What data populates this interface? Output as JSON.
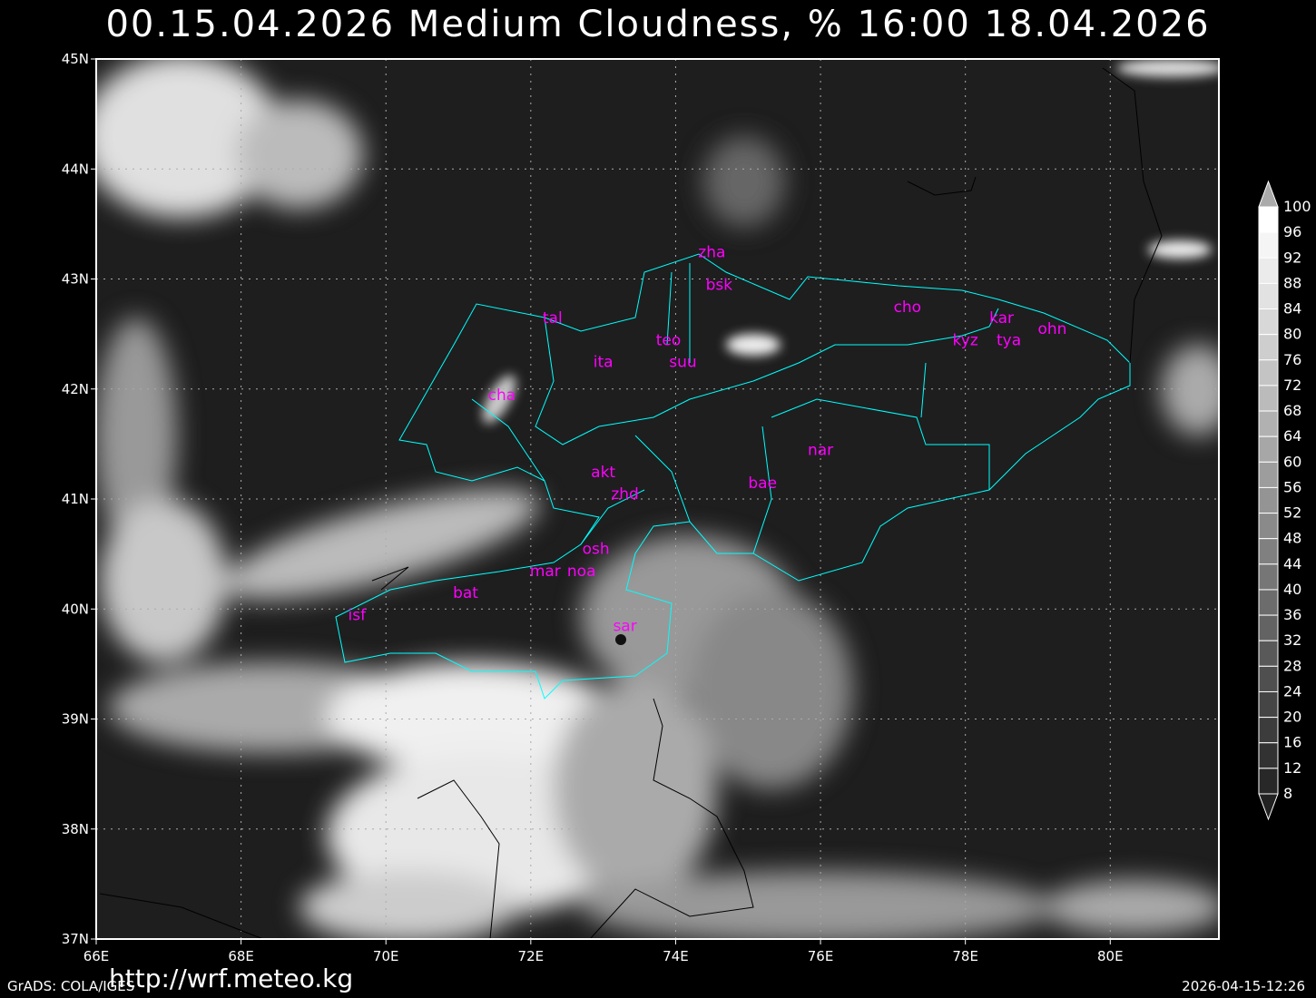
{
  "title": "00.15.04.2026  Medium Cloudness, %  16:00  18.04.2026",
  "map": {
    "lon_range": [
      66,
      81.5
    ],
    "lat_range": [
      37,
      45
    ],
    "background_color": "#1e1e1e",
    "border_color": "#00ffff",
    "station_color": "#ff00ff",
    "grid": true,
    "lon_ticks": [
      "66E",
      "68E",
      "70E",
      "72E",
      "74E",
      "76E",
      "78E",
      "80E"
    ],
    "lat_ticks": [
      "37N",
      "38N",
      "39N",
      "40N",
      "41N",
      "42N",
      "43N",
      "44N",
      "45N"
    ],
    "stations": [
      {
        "name": "zha",
        "lon": 74.5,
        "lat": 43.2
      },
      {
        "name": "bsk",
        "lon": 74.6,
        "lat": 42.9
      },
      {
        "name": "tal",
        "lon": 72.3,
        "lat": 42.6
      },
      {
        "name": "cho",
        "lon": 77.2,
        "lat": 42.7
      },
      {
        "name": "kar",
        "lon": 78.5,
        "lat": 42.6
      },
      {
        "name": "ohn",
        "lon": 79.2,
        "lat": 42.5
      },
      {
        "name": "kyz",
        "lon": 78.0,
        "lat": 42.4
      },
      {
        "name": "tya",
        "lon": 78.6,
        "lat": 42.4
      },
      {
        "name": "teo",
        "lon": 73.9,
        "lat": 42.4
      },
      {
        "name": "ita",
        "lon": 73.0,
        "lat": 42.2
      },
      {
        "name": "suu",
        "lon": 74.1,
        "lat": 42.2
      },
      {
        "name": "cha",
        "lon": 71.6,
        "lat": 41.9
      },
      {
        "name": "nar",
        "lon": 76.0,
        "lat": 41.4
      },
      {
        "name": "akt",
        "lon": 73.0,
        "lat": 41.2
      },
      {
        "name": "bae",
        "lon": 75.2,
        "lat": 41.1
      },
      {
        "name": "zhd",
        "lon": 73.3,
        "lat": 41.0
      },
      {
        "name": "osh",
        "lon": 72.9,
        "lat": 40.5
      },
      {
        "name": "mar",
        "lon": 72.2,
        "lat": 40.3
      },
      {
        "name": "noa",
        "lon": 72.7,
        "lat": 40.3
      },
      {
        "name": "bat",
        "lon": 71.1,
        "lat": 40.1
      },
      {
        "name": "isf",
        "lon": 69.6,
        "lat": 39.9
      },
      {
        "name": "sar",
        "lon": 73.3,
        "lat": 39.8
      }
    ]
  },
  "colorbar": {
    "unit": "%",
    "labels": [
      "100",
      "96",
      "92",
      "88",
      "84",
      "80",
      "76",
      "72",
      "68",
      "64",
      "60",
      "56",
      "52",
      "48",
      "44",
      "40",
      "36",
      "32",
      "28",
      "24",
      "20",
      "16",
      "12",
      "8"
    ]
  },
  "footer": {
    "software": "GrADS: COLA/IGES",
    "url": "http://wrf.meteo.kg",
    "timestamp": "2026-04-15-12:26"
  }
}
